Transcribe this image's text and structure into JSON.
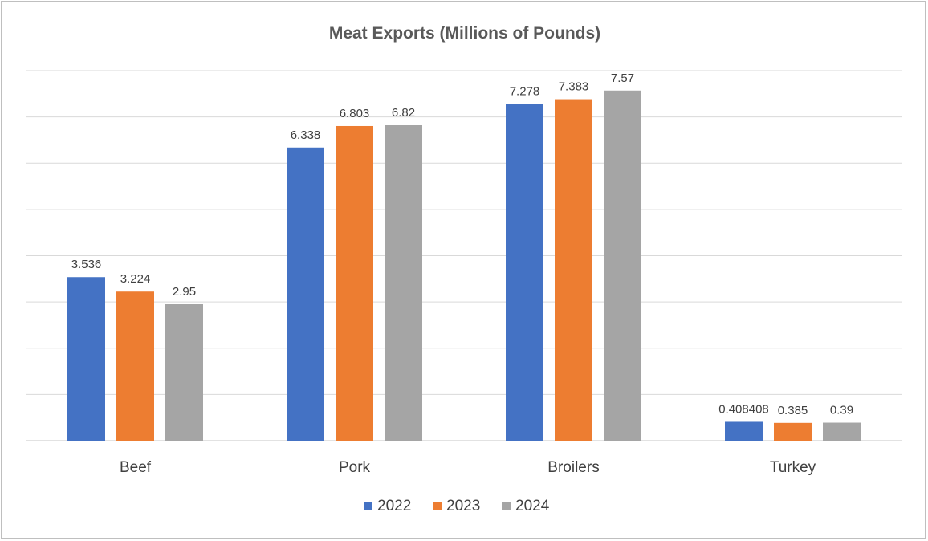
{
  "chart_data": {
    "type": "bar",
    "title": "Meat Exports (Millions of Pounds)",
    "xlabel": "",
    "ylabel": "",
    "ylim": [
      0,
      8
    ],
    "grid": true,
    "legend_position": "bottom",
    "categories": [
      "Beef",
      "Pork",
      "Broilers",
      "Turkey"
    ],
    "series": [
      {
        "name": "2022",
        "color": "#4472c4",
        "values": [
          3.536,
          6.338,
          7.278,
          0.408408
        ],
        "labels": [
          "3.536",
          "6.338",
          "7.278",
          "0.408408"
        ]
      },
      {
        "name": "2023",
        "color": "#ed7d31",
        "values": [
          3.224,
          6.803,
          7.383,
          0.385
        ],
        "labels": [
          "3.224",
          "6.803",
          "7.383",
          "0.385"
        ]
      },
      {
        "name": "2024",
        "color": "#a5a5a5",
        "values": [
          2.95,
          6.82,
          7.57,
          0.39
        ],
        "labels": [
          "2.95",
          "6.82",
          "7.57",
          "0.39"
        ]
      }
    ]
  }
}
